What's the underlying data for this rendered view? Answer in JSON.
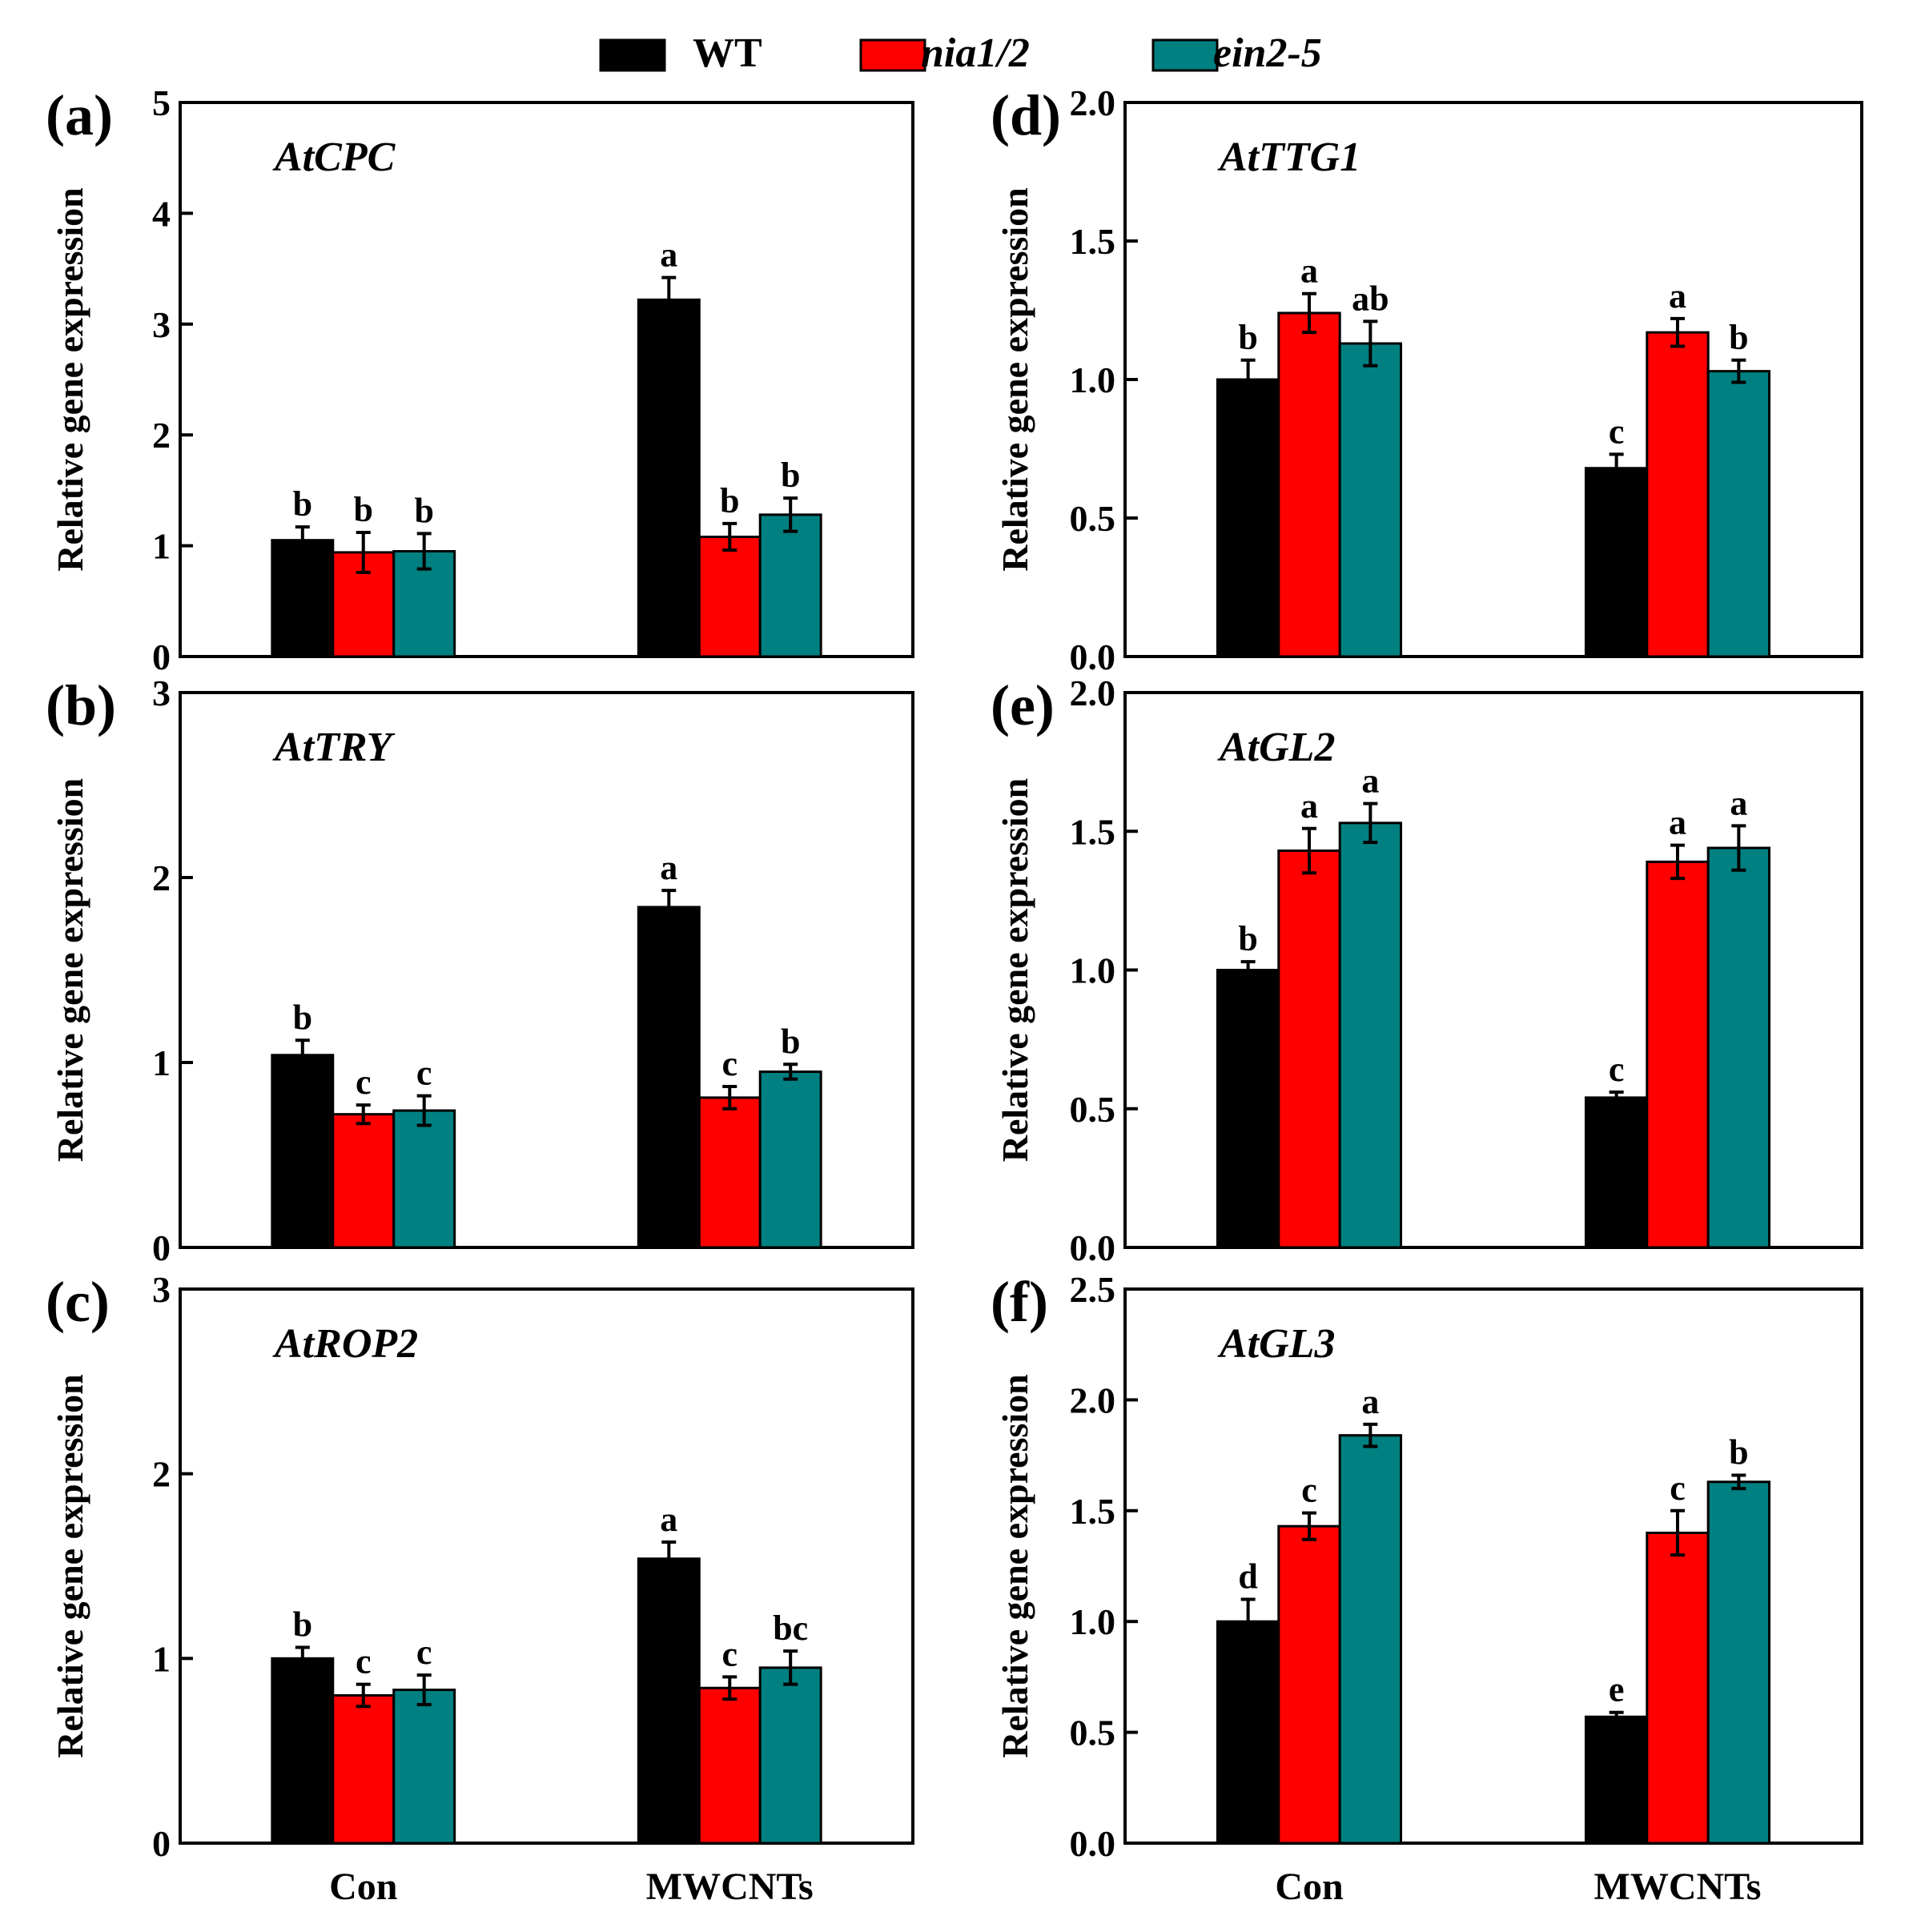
{
  "colors": {
    "WT": "#000000",
    "nia12": "#ff0000",
    "ein25": "#008080"
  },
  "legend": [
    {
      "key": "WT",
      "label": "WT",
      "italic": false
    },
    {
      "key": "nia12",
      "label": "nia1/2",
      "italic": true
    },
    {
      "key": "ein25",
      "label": "ein2-5",
      "italic": true
    }
  ],
  "chart_data": [
    {
      "type": "bar",
      "panel": "(a)",
      "gene": "AtCPC",
      "ylabel": "Relative gene expression",
      "yticks": [
        "0",
        "1",
        "2",
        "3",
        "4",
        "5"
      ],
      "ylim": [
        0,
        5
      ],
      "categories": [
        "Con",
        "MWCNTs"
      ],
      "series": [
        {
          "name": "WT",
          "values": [
            1.05,
            3.22
          ],
          "errors": [
            0.12,
            0.2
          ],
          "letters": [
            "b",
            "a"
          ]
        },
        {
          "name": "nia1/2",
          "values": [
            0.94,
            1.08
          ],
          "errors": [
            0.18,
            0.12
          ],
          "letters": [
            "b",
            "b"
          ]
        },
        {
          "name": "ein2-5",
          "values": [
            0.95,
            1.28
          ],
          "errors": [
            0.16,
            0.15
          ],
          "letters": [
            "b",
            "b"
          ]
        }
      ]
    },
    {
      "type": "bar",
      "panel": "(b)",
      "gene": "AtTRY",
      "ylabel": "Relative gene expression",
      "yticks": [
        "0",
        "1",
        "2",
        "3"
      ],
      "ylim": [
        0,
        3
      ],
      "categories": [
        "Con",
        "MWCNTs"
      ],
      "series": [
        {
          "name": "WT",
          "values": [
            1.04,
            1.84
          ],
          "errors": [
            0.08,
            0.09
          ],
          "letters": [
            "b",
            "a"
          ]
        },
        {
          "name": "nia1/2",
          "values": [
            0.72,
            0.81
          ],
          "errors": [
            0.05,
            0.06
          ],
          "letters": [
            "c",
            "c"
          ]
        },
        {
          "name": "ein2-5",
          "values": [
            0.74,
            0.95
          ],
          "errors": [
            0.08,
            0.04
          ],
          "letters": [
            "c",
            "b"
          ]
        }
      ]
    },
    {
      "type": "bar",
      "panel": "(c)",
      "gene": "AtROP2",
      "ylabel": "Relative gene expression",
      "yticks": [
        "0",
        "1",
        "2",
        "3"
      ],
      "ylim": [
        0,
        3
      ],
      "categories": [
        "Con",
        "MWCNTs"
      ],
      "series": [
        {
          "name": "WT",
          "values": [
            1.0,
            1.54
          ],
          "errors": [
            0.06,
            0.09
          ],
          "letters": [
            "b",
            "a"
          ]
        },
        {
          "name": "nia1/2",
          "values": [
            0.8,
            0.84
          ],
          "errors": [
            0.06,
            0.06
          ],
          "letters": [
            "c",
            "c"
          ]
        },
        {
          "name": "ein2-5",
          "values": [
            0.83,
            0.95
          ],
          "errors": [
            0.08,
            0.09
          ],
          "letters": [
            "c",
            "bc"
          ]
        }
      ]
    },
    {
      "type": "bar",
      "panel": "(d)",
      "gene": "AtTTG1",
      "ylabel": "Relative gene expression",
      "yticks": [
        "0.0",
        "0.5",
        "1.0",
        "1.5",
        "2.0"
      ],
      "ylim": [
        0,
        2
      ],
      "categories": [
        "Con",
        "MWCNTs"
      ],
      "series": [
        {
          "name": "WT",
          "values": [
            1.0,
            0.68
          ],
          "errors": [
            0.07,
            0.05
          ],
          "letters": [
            "b",
            "c"
          ]
        },
        {
          "name": "nia1/2",
          "values": [
            1.24,
            1.17
          ],
          "errors": [
            0.07,
            0.05
          ],
          "letters": [
            "a",
            "a"
          ]
        },
        {
          "name": "ein2-5",
          "values": [
            1.13,
            1.03
          ],
          "errors": [
            0.08,
            0.04
          ],
          "letters": [
            "ab",
            "b"
          ]
        }
      ]
    },
    {
      "type": "bar",
      "panel": "(e)",
      "gene": "AtGL2",
      "ylabel": "Relative gene expression",
      "yticks": [
        "0.0",
        "0.5",
        "1.0",
        "1.5",
        "2.0"
      ],
      "ylim": [
        0,
        2
      ],
      "categories": [
        "Con",
        "MWCNTs"
      ],
      "series": [
        {
          "name": "WT",
          "values": [
            1.0,
            0.54
          ],
          "errors": [
            0.03,
            0.02
          ],
          "letters": [
            "b",
            "c"
          ]
        },
        {
          "name": "nia1/2",
          "values": [
            1.43,
            1.39
          ],
          "errors": [
            0.08,
            0.06
          ],
          "letters": [
            "a",
            "a"
          ]
        },
        {
          "name": "ein2-5",
          "values": [
            1.53,
            1.44
          ],
          "errors": [
            0.07,
            0.08
          ],
          "letters": [
            "a",
            "a"
          ]
        }
      ]
    },
    {
      "type": "bar",
      "panel": "(f)",
      "gene": "AtGL3",
      "ylabel": "Relative gene expression",
      "yticks": [
        "0.0",
        "0.5",
        "1.0",
        "1.5",
        "2.0",
        "2.5"
      ],
      "ylim": [
        0,
        2.5
      ],
      "categories": [
        "Con",
        "MWCNTs"
      ],
      "series": [
        {
          "name": "WT",
          "values": [
            1.0,
            0.57
          ],
          "errors": [
            0.1,
            0.02
          ],
          "letters": [
            "d",
            "e"
          ]
        },
        {
          "name": "nia1/2",
          "values": [
            1.43,
            1.4
          ],
          "errors": [
            0.06,
            0.1
          ],
          "letters": [
            "c",
            "c"
          ]
        },
        {
          "name": "ein2-5",
          "values": [
            1.84,
            1.63
          ],
          "errors": [
            0.05,
            0.03
          ],
          "letters": [
            "a",
            "b"
          ]
        }
      ]
    }
  ]
}
